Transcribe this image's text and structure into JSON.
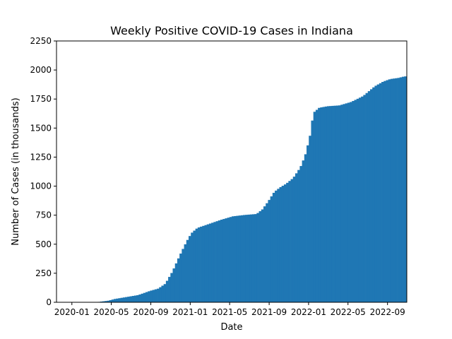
{
  "chart_data": {
    "type": "bar",
    "title": "Weekly Positive COVID-19 Cases in Indiana",
    "xlabel": "Date",
    "ylabel": "Number of Cases (in thousands)",
    "x_ticks": [
      "2020-01",
      "2020-05",
      "2020-09",
      "2021-01",
      "2021-05",
      "2021-09",
      "2022-01",
      "2022-05",
      "2022-09"
    ],
    "x_tick_positions": [
      2020.0,
      2020.333,
      2020.667,
      2021.0,
      2021.333,
      2021.667,
      2022.0,
      2022.333,
      2022.667
    ],
    "y_ticks": [
      0,
      250,
      500,
      750,
      1000,
      1250,
      1500,
      1750,
      2000,
      2250
    ],
    "xlim": [
      2019.87,
      2022.83
    ],
    "ylim": [
      0,
      2250
    ],
    "grid": false,
    "color": "#1f77b4",
    "keypoints": [
      [
        2020.2,
        1
      ],
      [
        2020.3,
        14
      ],
      [
        2020.35,
        28
      ],
      [
        2020.45,
        45
      ],
      [
        2020.55,
        62
      ],
      [
        2020.65,
        98
      ],
      [
        2020.72,
        118
      ],
      [
        2020.78,
        160
      ],
      [
        2020.84,
        265
      ],
      [
        2020.9,
        400
      ],
      [
        2020.96,
        525
      ],
      [
        2021.0,
        595
      ],
      [
        2021.05,
        640
      ],
      [
        2021.15,
        675
      ],
      [
        2021.25,
        710
      ],
      [
        2021.35,
        740
      ],
      [
        2021.45,
        752
      ],
      [
        2021.55,
        760
      ],
      [
        2021.6,
        800
      ],
      [
        2021.65,
        870
      ],
      [
        2021.7,
        950
      ],
      [
        2021.75,
        990
      ],
      [
        2021.8,
        1020
      ],
      [
        2021.86,
        1070
      ],
      [
        2021.92,
        1160
      ],
      [
        2021.96,
        1260
      ],
      [
        2022.0,
        1420
      ],
      [
        2022.02,
        1560
      ],
      [
        2022.04,
        1640
      ],
      [
        2022.08,
        1675
      ],
      [
        2022.15,
        1688
      ],
      [
        2022.25,
        1695
      ],
      [
        2022.35,
        1725
      ],
      [
        2022.45,
        1775
      ],
      [
        2022.55,
        1860
      ],
      [
        2022.62,
        1900
      ],
      [
        2022.68,
        1922
      ],
      [
        2022.75,
        1932
      ],
      [
        2022.8,
        1945
      ]
    ],
    "x_start": 2020.2,
    "x_end": 2022.8,
    "bar_width": 0.01917
  }
}
